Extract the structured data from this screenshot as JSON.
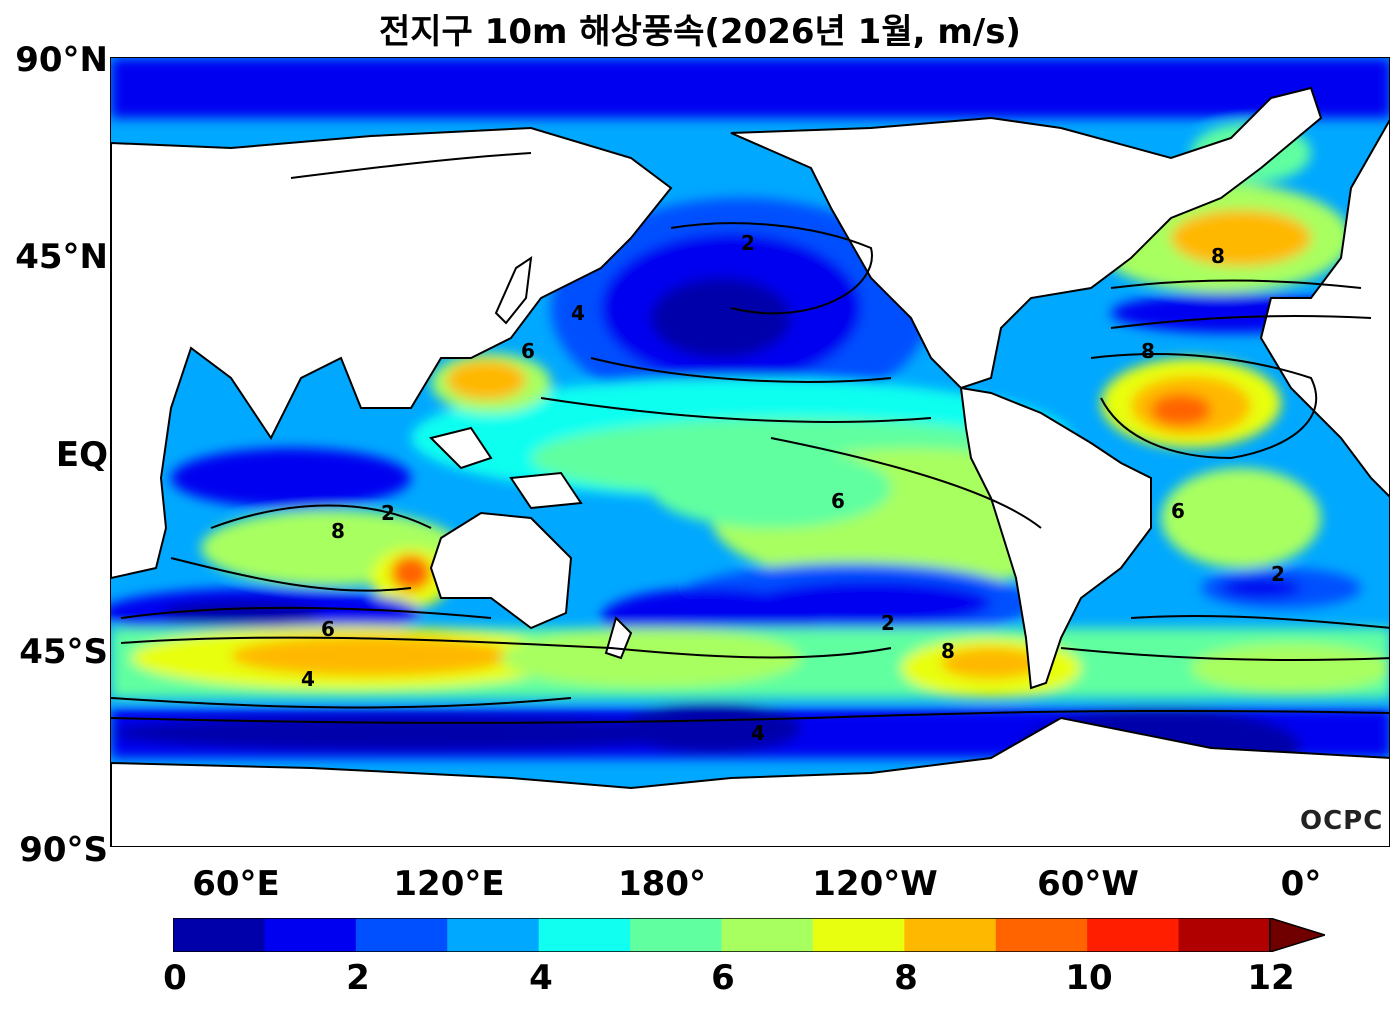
{
  "title": "전지구 10m 해상풍속(2026년 1월, m/s)",
  "lat_labels": [
    "90°N",
    "45°N",
    "EQ",
    "45°S",
    "90°S"
  ],
  "lon_labels": [
    "60°E",
    "120°E",
    "180°",
    "120°W",
    "60°W",
    "0°"
  ],
  "logo": "OCPC",
  "colorbar": {
    "tick_labels": [
      "0",
      "2",
      "4",
      "6",
      "8",
      "10",
      "12"
    ],
    "colors": [
      "#0000aa",
      "#0000f0",
      "#0050ff",
      "#00a8ff",
      "#10fff0",
      "#60ffa0",
      "#a8ff60",
      "#e8ff10",
      "#ffb800",
      "#ff6400",
      "#ff1e00",
      "#b00000",
      "#700000"
    ],
    "extend": "max"
  },
  "contour_labels": [
    "2",
    "4",
    "6",
    "8"
  ]
}
